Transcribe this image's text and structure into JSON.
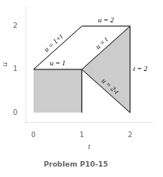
{
  "chart_data": {
    "type": "line",
    "title": "Problem P10-15",
    "xlabel": "t",
    "ylabel": "u",
    "xlim": [
      -0.15,
      2.45
    ],
    "ylim": [
      -0.22,
      2.45
    ],
    "xticks": [
      0,
      1,
      2
    ],
    "yticks": [
      0,
      1,
      2
    ],
    "grid": false,
    "areas": [
      {
        "x": [
          0,
          1,
          1,
          0
        ],
        "y": [
          0,
          0,
          1,
          1
        ],
        "color": "#cccccc"
      },
      {
        "x": [
          1,
          2,
          2
        ],
        "y": [
          1,
          0,
          2
        ],
        "color": "#cccccc"
      }
    ],
    "series": [
      {
        "label": "u = 1+t",
        "x": [
          0,
          1
        ],
        "y": [
          1,
          2
        ],
        "color": "#000000"
      },
      {
        "label": "u = 1",
        "x": [
          0,
          1
        ],
        "y": [
          1,
          1
        ],
        "color": "#000000"
      },
      {
        "label": "u = 2",
        "x": [
          1,
          2
        ],
        "y": [
          2,
          2
        ],
        "color": "#000000"
      },
      {
        "label": "u = t",
        "x": [
          1,
          2
        ],
        "y": [
          1,
          2
        ],
        "color": "#000000"
      },
      {
        "label": "u = 2-t",
        "x": [
          1,
          2
        ],
        "y": [
          1,
          0
        ],
        "color": "#000000"
      },
      {
        "label": "t = 2",
        "x": [
          2,
          2
        ],
        "y": [
          0,
          2
        ],
        "color": "#000000"
      },
      {
        "label": null,
        "x": [
          1,
          1
        ],
        "y": [
          0,
          1
        ],
        "color": "#000000"
      }
    ]
  }
}
